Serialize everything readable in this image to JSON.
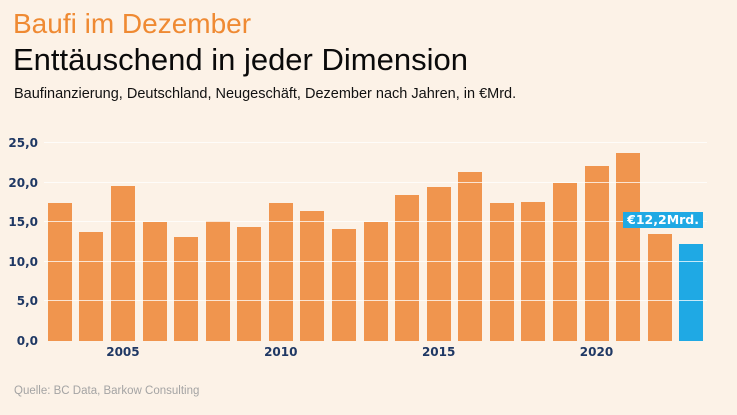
{
  "page": {
    "kicker": "Baufi im Dezember",
    "headline": "Enttäuschend in jeder Dimension",
    "subtitle": "Baufinanzierung, Deutschland, Neugeschäft, Dezember nach Jahren, in €Mrd.",
    "source": "Quelle: BC Data, Barkow Consulting"
  },
  "colors": {
    "background": "#FCF2E7",
    "kicker_orange": "#EF8A33",
    "bar_orange": "#F0954E",
    "highlight_blue": "#1FA9E4",
    "axis_text_navy": "#1F3864",
    "source_gray": "#A4A4A4",
    "gridline_white": "rgba(255,255,255,0.75)"
  },
  "chart_data": {
    "type": "bar",
    "title": "Baufi im Dezember",
    "subtitle": "Enttäuschend in jeder Dimension",
    "description": "Baufinanzierung, Deutschland, Neugeschäft, Dezember nach Jahren, in €Mrd.",
    "unit": "€Mrd.",
    "categories": [
      "2003",
      "2004",
      "2005",
      "2006",
      "2007",
      "2008",
      "2009",
      "2010",
      "2011",
      "2012",
      "2013",
      "2014",
      "2015",
      "2016",
      "2017",
      "2018",
      "2019",
      "2020",
      "2021",
      "2022",
      "2023"
    ],
    "values": [
      17.4,
      13.8,
      19.6,
      15.0,
      13.1,
      15.1,
      14.4,
      17.4,
      16.4,
      14.1,
      15.0,
      18.4,
      19.5,
      21.3,
      17.4,
      17.6,
      20.0,
      22.1,
      23.8,
      13.5,
      12.2
    ],
    "highlight": {
      "index": 20,
      "category": "2023",
      "value": 12.2,
      "label": "€12,2Mrd."
    },
    "y_ticks": [
      {
        "label": "0,0",
        "value": 0
      },
      {
        "label": "5,0",
        "value": 5
      },
      {
        "label": "10,0",
        "value": 10
      },
      {
        "label": "15,0",
        "value": 15
      },
      {
        "label": "20,0",
        "value": 20
      },
      {
        "label": "25,0",
        "value": 25
      }
    ],
    "x_ticks": [
      {
        "label": "2005",
        "index": 2
      },
      {
        "label": "2010",
        "index": 7
      },
      {
        "label": "2015",
        "index": 12
      },
      {
        "label": "2020",
        "index": 17
      }
    ],
    "ylim": [
      0,
      25
    ],
    "grid": true,
    "legend": false
  }
}
